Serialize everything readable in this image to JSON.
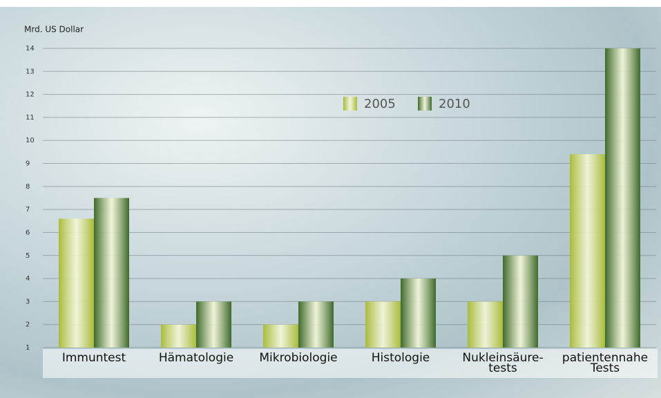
{
  "chart_data": {
    "type": "bar",
    "y_axis_label": "Mrd. US Dollar",
    "categories": [
      "Immuntest",
      "Hämatologie",
      "Mikrobiologie",
      "Histologie",
      "Nukleinsäure-\ntests",
      "patientennahe\nTests"
    ],
    "series": [
      {
        "name": "2005",
        "color": "#a9bb3c",
        "values": [
          6.6,
          2,
          2,
          3,
          3,
          9.4
        ]
      },
      {
        "name": "2010",
        "color": "#3e6a2b",
        "values": [
          7.5,
          3,
          3,
          4,
          5,
          14
        ]
      }
    ],
    "ylim": [
      1,
      14
    ],
    "yticks": [
      1,
      2,
      3,
      4,
      5,
      6,
      7,
      8,
      9,
      10,
      11,
      12,
      13,
      14
    ],
    "grid": true
  }
}
